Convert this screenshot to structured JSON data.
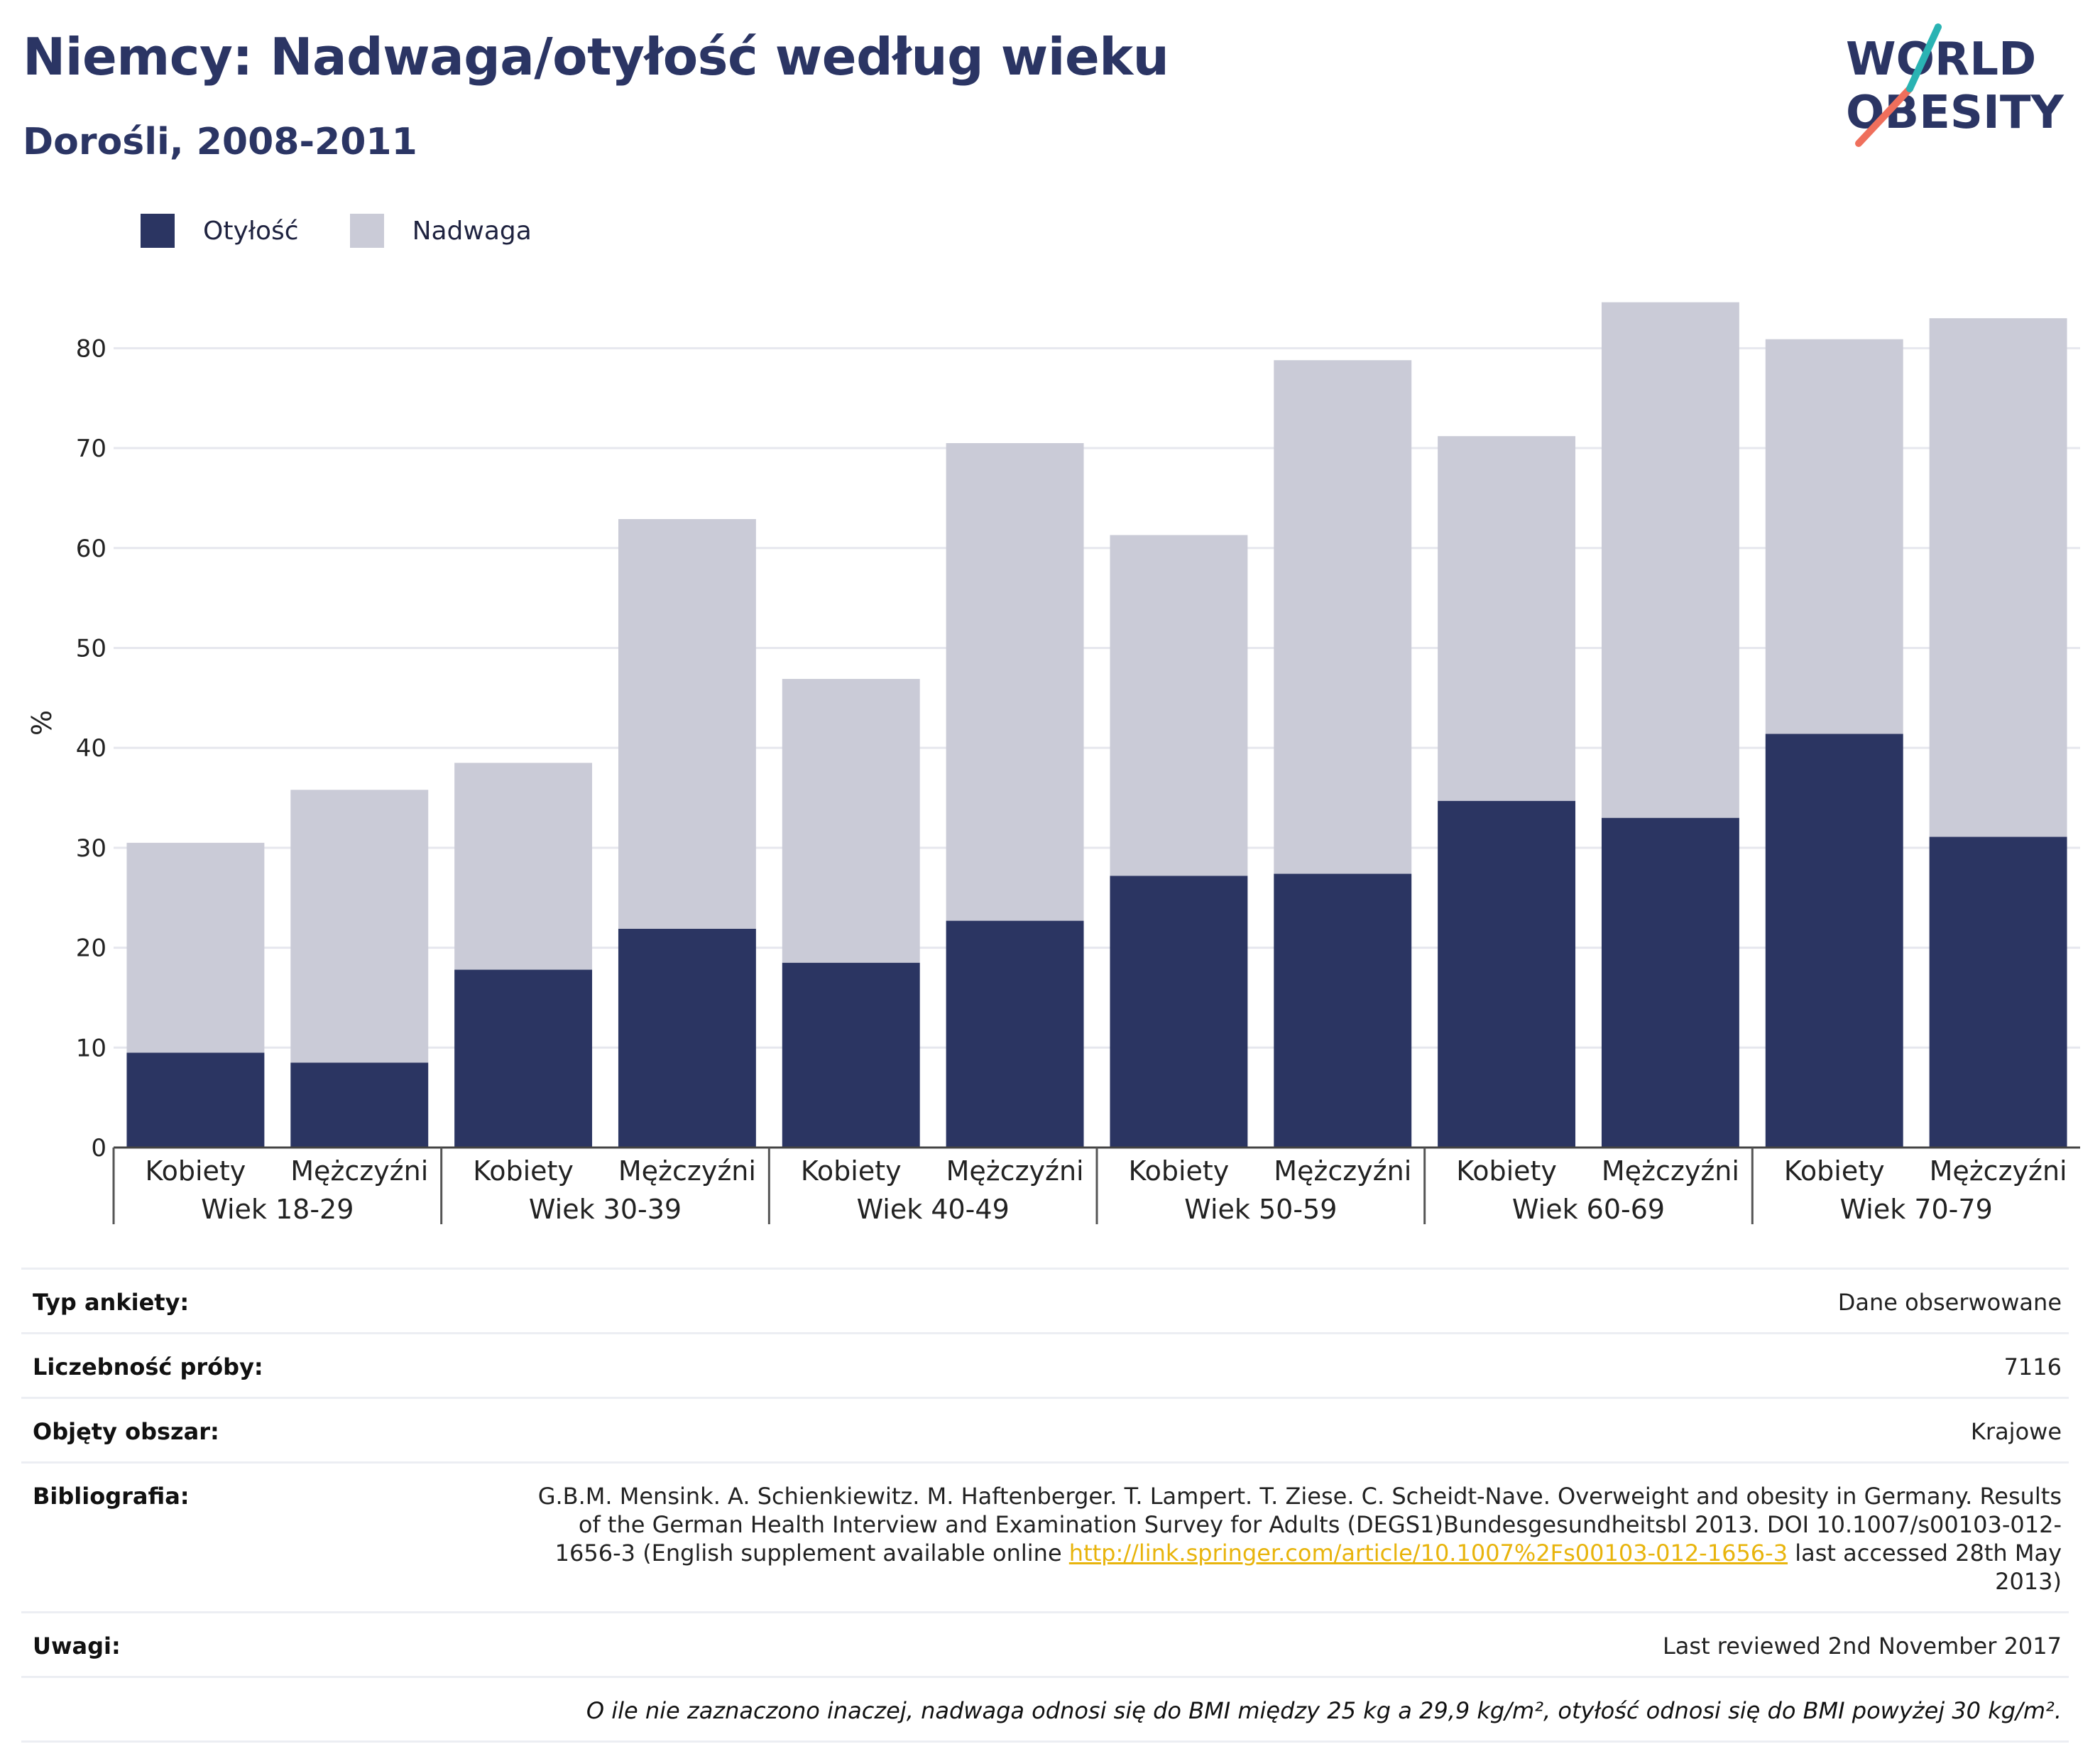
{
  "header": {
    "title": "Niemcy: Nadwaga/otyłość według wieku",
    "subtitle": "Dorośli, 2008-2011",
    "logo_line1": "WORLD",
    "logo_line2": "OBESITY"
  },
  "legend": [
    {
      "label": "Otyłość",
      "color": "#2b3562"
    },
    {
      "label": "Nadwaga",
      "color": "#cacbd7"
    }
  ],
  "chart_data": {
    "type": "bar",
    "stacked": true,
    "ylabel": "%",
    "ylim": [
      0,
      85
    ],
    "yticks": [
      0,
      10,
      20,
      30,
      40,
      50,
      60,
      70,
      80
    ],
    "grid": true,
    "legend_position": "top-left",
    "groups": [
      "Wiek 18-29",
      "Wiek 30-39",
      "Wiek 40-49",
      "Wiek 50-59",
      "Wiek 60-69",
      "Wiek 70-79"
    ],
    "subcategories": [
      "Kobiety",
      "Mężczyźni"
    ],
    "categories": [
      "Wiek 18-29 Kobiety",
      "Wiek 18-29 Mężczyźni",
      "Wiek 30-39 Kobiety",
      "Wiek 30-39 Mężczyźni",
      "Wiek 40-49 Kobiety",
      "Wiek 40-49 Mężczyźni",
      "Wiek 50-59 Kobiety",
      "Wiek 50-59 Mężczyźni",
      "Wiek 60-69 Kobiety",
      "Wiek 60-69 Mężczyźni",
      "Wiek 70-79 Kobiety",
      "Wiek 70-79 Mężczyźni"
    ],
    "series": [
      {
        "name": "Otyłość",
        "color": "#2b3562",
        "values": [
          9.5,
          8.5,
          17.8,
          21.9,
          18.5,
          22.7,
          27.2,
          27.4,
          34.7,
          33.0,
          41.4,
          31.1
        ]
      },
      {
        "name": "Nadwaga",
        "color": "#cacbd7",
        "values": [
          21.0,
          27.3,
          20.7,
          41.0,
          28.4,
          47.8,
          34.1,
          51.4,
          36.5,
          51.6,
          39.5,
          51.9
        ]
      }
    ]
  },
  "info": {
    "rows": [
      {
        "label": "Typ ankiety:",
        "value": "Dane obserwowane"
      },
      {
        "label": "Liczebność próby:",
        "value": "7116"
      },
      {
        "label": "Objęty obszar:",
        "value": "Krajowe"
      }
    ],
    "bibliography": {
      "label": "Bibliografia:",
      "text_before": "G.B.M. Mensink. A. Schienkiewitz. M. Haftenberger. T. Lampert. T. Ziese. C. Scheidt-Nave. Overweight and obesity in Germany. Results of the German Health Interview and Examination Survey for Adults (DEGS1)Bundesgesundheitsbl 2013. DOI 10.1007/s00103-012-1656-3 (English supplement available online ",
      "link": "http://link.springer.com/article/10.1007%2Fs00103-012-1656-3",
      "text_after": " last accessed 28th May 2013)"
    },
    "notes": {
      "label": "Uwagi:",
      "value": "Last reviewed 2nd November 2017"
    },
    "footnote": "O ile nie zaznaczono inaczej, nadwaga odnosi się do BMI między 25 kg a 29,9 kg/m², otyłość odnosi się do BMI powyżej 30 kg/m²."
  }
}
